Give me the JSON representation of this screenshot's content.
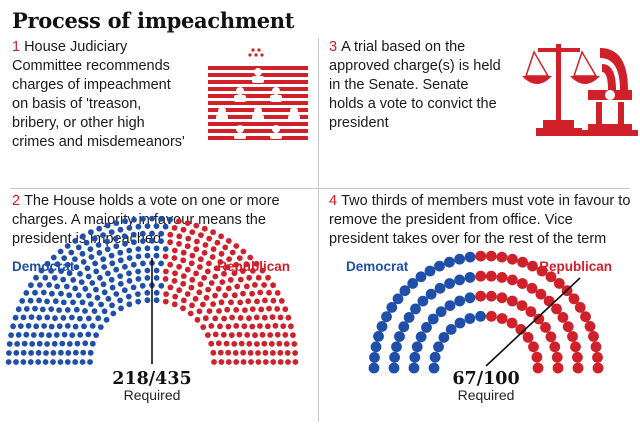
{
  "title": "Process of impeachment",
  "colors": {
    "democrat": "#1f4fa8",
    "republican": "#d0202a",
    "vacant": "#d9d9d9",
    "icon": "#d0202a"
  },
  "steps": [
    {
      "num": "1",
      "text": "House Judiciary Committee recommends charges of impeachment on basis of 'treason, bribery, or other high crimes and misdemeanors'"
    },
    {
      "num": "2",
      "text": "The House holds a vote on one or more charges. A majority in favour means the president is impeached"
    },
    {
      "num": "3",
      "text": "A trial based on the approved charge(s) is held in the Senate. Senate holds a vote to convict the president"
    },
    {
      "num": "4",
      "text": "Two thirds of members must vote in favour to remove the president from office. Vice president takes over for the rest of the term"
    }
  ],
  "icons": {
    "step1": "house-chamber-icon",
    "step3": "scales-of-justice-senate-icon"
  },
  "house": {
    "democrat_label": "Democrat",
    "republican_label": "Republican",
    "democrats": 235,
    "republicans": 200,
    "total": 435,
    "required": "218/435",
    "required_label": "Required"
  },
  "senate": {
    "democrat_label": "Democrat",
    "republican_label": "Republican",
    "democrats": 47,
    "republicans": 53,
    "vacant": 0,
    "total": 100,
    "required": "67/100",
    "required_label": "Required"
  }
}
